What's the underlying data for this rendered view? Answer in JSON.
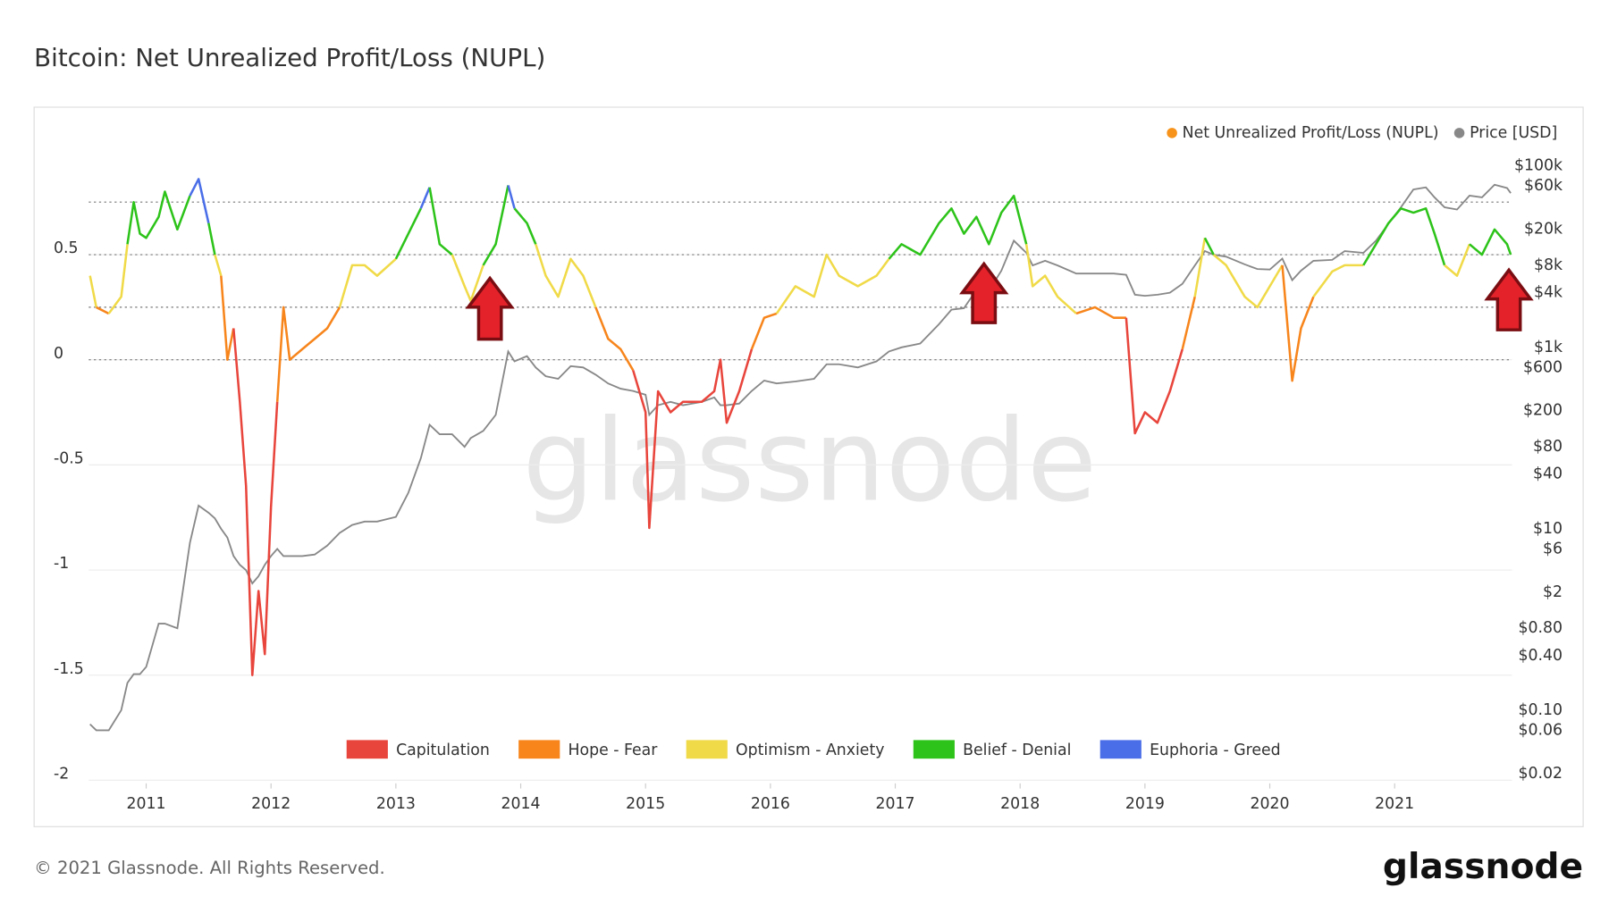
{
  "chart_data": {
    "type": "line",
    "title": "Bitcoin: Net Unrealized Profit/Loss (NUPL)",
    "watermark": "glassnode",
    "footer": "© 2021 Glassnode. All Rights Reserved.",
    "logo": "glassnode",
    "xlim": [
      2010.54,
      2021.94
    ],
    "xticks": [
      2011,
      2012,
      2013,
      2014,
      2015,
      2016,
      2017,
      2018,
      2019,
      2020,
      2021
    ],
    "ylim": [
      -2.015,
      1.025
    ],
    "yticks": [
      -2,
      -1.5,
      -1,
      -0.5,
      0,
      0.5
    ],
    "y2lim": [
      0.0156,
      173000
    ],
    "y2log": true,
    "y2ticks": [
      {
        "value": 100000,
        "label": "$100k"
      },
      {
        "value": 60000,
        "label": "$60k"
      },
      {
        "value": 20000,
        "label": "$20k"
      },
      {
        "value": 8000,
        "label": "$8k"
      },
      {
        "value": 4000,
        "label": "$4k"
      },
      {
        "value": 1000,
        "label": "$1k"
      },
      {
        "value": 600,
        "label": "$600"
      },
      {
        "value": 200,
        "label": "$200"
      },
      {
        "value": 80,
        "label": "$80"
      },
      {
        "value": 40,
        "label": "$40"
      },
      {
        "value": 10,
        "label": "$10"
      },
      {
        "value": 6,
        "label": "$6"
      },
      {
        "value": 2,
        "label": "$2"
      },
      {
        "value": 0.8,
        "label": "$0.80"
      },
      {
        "value": 0.4,
        "label": "$0.40"
      },
      {
        "value": 0.1,
        "label": "$0.10"
      },
      {
        "value": 0.06,
        "label": "$0.06"
      },
      {
        "value": 0.02,
        "label": "$0.02"
      }
    ],
    "grid": true,
    "legend": "top-right",
    "zones": [
      {
        "name": "Capitulation",
        "color": "#e8453c"
      },
      {
        "name": "Hope - Fear",
        "color": "#f7851c",
        "from": 0
      },
      {
        "name": "Optimism - Anxiety",
        "color": "#f0da48",
        "from": 0.25
      },
      {
        "name": "Belief - Denial",
        "color": "#2dc31a",
        "from": 0.5
      },
      {
        "name": "Euphoria - Greed",
        "color": "#4a6ee8",
        "from": 0.75
      }
    ],
    "x": [
      2010.55,
      2010.6,
      2010.7,
      2010.8,
      2010.85,
      2010.9,
      2010.95,
      2011.0,
      2011.1,
      2011.15,
      2011.25,
      2011.35,
      2011.42,
      2011.5,
      2011.55,
      2011.6,
      2011.65,
      2011.7,
      2011.75,
      2011.8,
      2011.85,
      2011.9,
      2011.95,
      2012.0,
      2012.05,
      2012.1,
      2012.15,
      2012.25,
      2012.35,
      2012.45,
      2012.55,
      2012.65,
      2012.75,
      2012.85,
      2013.0,
      2013.1,
      2013.2,
      2013.27,
      2013.35,
      2013.45,
      2013.55,
      2013.6,
      2013.7,
      2013.8,
      2013.9,
      2013.95,
      2014.05,
      2014.12,
      2014.2,
      2014.3,
      2014.4,
      2014.5,
      2014.6,
      2014.7,
      2014.8,
      2014.9,
      2015.0,
      2015.03,
      2015.1,
      2015.2,
      2015.3,
      2015.45,
      2015.55,
      2015.6,
      2015.65,
      2015.75,
      2015.85,
      2015.95,
      2016.05,
      2016.2,
      2016.35,
      2016.45,
      2016.55,
      2016.7,
      2016.85,
      2016.95,
      2017.05,
      2017.2,
      2017.35,
      2017.45,
      2017.55,
      2017.65,
      2017.75,
      2017.85,
      2017.95,
      2018.05,
      2018.1,
      2018.2,
      2018.3,
      2018.45,
      2018.6,
      2018.75,
      2018.85,
      2018.92,
      2019.0,
      2019.1,
      2019.2,
      2019.3,
      2019.4,
      2019.48,
      2019.55,
      2019.65,
      2019.8,
      2019.9,
      2020.0,
      2020.1,
      2020.18,
      2020.25,
      2020.35,
      2020.5,
      2020.6,
      2020.75,
      2020.85,
      2020.95,
      2021.05,
      2021.15,
      2021.25,
      2021.32,
      2021.4,
      2021.5,
      2021.6,
      2021.7,
      2021.8,
      2021.9,
      2021.93
    ],
    "series": [
      {
        "name": "Net Unrealized Profit/Loss (NUPL)",
        "color": "#f7931a",
        "values": [
          0.4,
          0.25,
          0.22,
          0.3,
          0.55,
          0.75,
          0.6,
          0.58,
          0.68,
          0.8,
          0.62,
          0.78,
          0.86,
          0.65,
          0.5,
          0.4,
          0,
          0.15,
          -0.2,
          -0.6,
          -1.5,
          -1.1,
          -1.4,
          -0.7,
          -0.2,
          0.25,
          0,
          0.05,
          0.1,
          0.15,
          0.25,
          0.45,
          0.45,
          0.4,
          0.48,
          0.6,
          0.72,
          0.82,
          0.55,
          0.5,
          0.35,
          0.28,
          0.45,
          0.55,
          0.83,
          0.72,
          0.65,
          0.55,
          0.4,
          0.3,
          0.48,
          0.4,
          0.25,
          0.1,
          0.05,
          -0.05,
          -0.25,
          -0.8,
          -0.15,
          -0.25,
          -0.2,
          -0.2,
          -0.15,
          0,
          -0.3,
          -0.15,
          0.05,
          0.2,
          0.22,
          0.35,
          0.3,
          0.5,
          0.4,
          0.35,
          0.4,
          0.48,
          0.55,
          0.5,
          0.65,
          0.72,
          0.6,
          0.68,
          0.55,
          0.7,
          0.78,
          0.55,
          0.35,
          0.4,
          0.3,
          0.22,
          0.25,
          0.2,
          0.2,
          -0.35,
          -0.25,
          -0.3,
          -0.15,
          0.05,
          0.3,
          0.58,
          0.5,
          0.45,
          0.3,
          0.25,
          0.35,
          0.45,
          -0.1,
          0.15,
          0.3,
          0.42,
          0.45,
          0.45,
          0.55,
          0.65,
          0.72,
          0.7,
          0.72,
          0.6,
          0.45,
          0.4,
          0.55,
          0.5,
          0.62,
          0.55,
          0.5
        ]
      },
      {
        "name": "Price [USD]",
        "color": "#888888",
        "axis": "y2",
        "values": [
          0.07,
          0.06,
          0.06,
          0.1,
          0.2,
          0.25,
          0.25,
          0.3,
          0.9,
          0.9,
          0.8,
          7,
          18,
          15,
          13,
          10,
          8,
          5,
          4,
          3.5,
          2.5,
          3,
          4,
          5,
          6,
          5,
          5,
          5,
          5.2,
          6.5,
          9,
          11,
          12,
          12,
          13.5,
          25,
          60,
          140,
          110,
          110,
          80,
          100,
          120,
          180,
          900,
          700,
          800,
          600,
          480,
          450,
          620,
          600,
          500,
          400,
          350,
          330,
          300,
          180,
          230,
          250,
          230,
          250,
          280,
          230,
          230,
          240,
          330,
          430,
          400,
          420,
          450,
          650,
          650,
          600,
          700,
          900,
          1000,
          1100,
          1800,
          2600,
          2700,
          4300,
          4200,
          7000,
          15000,
          11000,
          8000,
          9000,
          8000,
          6500,
          6500,
          6500,
          6300,
          3800,
          3700,
          3800,
          4000,
          5000,
          8000,
          11500,
          10500,
          10000,
          8200,
          7300,
          7200,
          9500,
          5500,
          7000,
          9000,
          9200,
          11500,
          11000,
          15000,
          23000,
          35000,
          55000,
          58000,
          45000,
          35000,
          33000,
          47000,
          45000,
          62000,
          57000,
          50000
        ]
      }
    ]
  }
}
